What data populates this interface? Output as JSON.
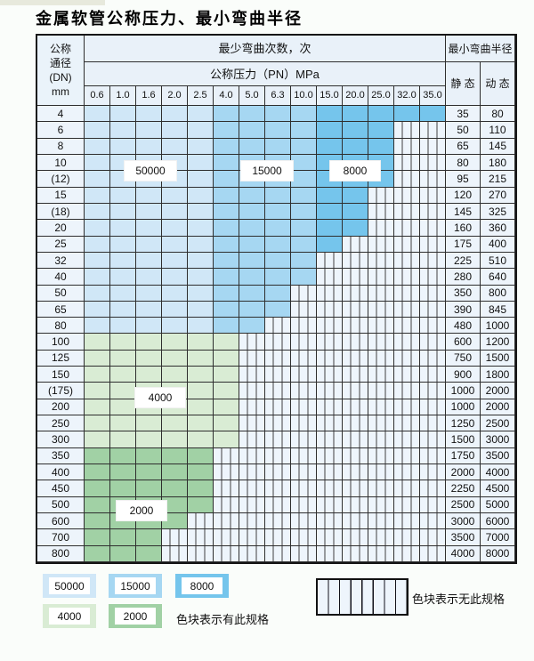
{
  "title": "金属软管公称压力、最小弯曲半径",
  "header": {
    "dn_lines": [
      "公称",
      "通径",
      "(DN)",
      "mm"
    ],
    "cycles_title": "最少弯曲次数，次",
    "radius_title": "最小弯曲半径",
    "pressure_title": "公称压力（PN）MPa",
    "static_label": "静 态",
    "dynamic_label": "动 态"
  },
  "region_labels": {
    "r50000": "50000",
    "r15000": "15000",
    "r8000": "8000",
    "r4000": "4000",
    "r2000": "2000"
  },
  "legend": {
    "items": [
      {
        "label": "50000"
      },
      {
        "label": "15000"
      },
      {
        "label": "8000"
      },
      {
        "label": "4000"
      },
      {
        "label": "2000"
      }
    ],
    "has_spec_text": "色块表示有此规格",
    "no_spec_text": "色块表示无此规格"
  },
  "colors": {
    "blue_50000": "#d0e7f7",
    "blue_15000": "#a6d7f2",
    "blue_8000": "#75c5ec",
    "green_4000": "#d9ecd4",
    "green_2000": "#a1d1a5",
    "no_spec_bg": "#eef5fc",
    "grid_line": "#2e2e2e",
    "label_col_bg": "#edf4fb",
    "header_bg": "#e9f1f9"
  },
  "chart_data": {
    "type": "table",
    "title": "金属软管公称压力、最小弯曲半径",
    "pressure_columns_MPa": [
      "0.6",
      "1.0",
      "1.6",
      "2.0",
      "2.5",
      "4.0",
      "5.0",
      "6.3",
      "10.0",
      "15.0",
      "20.0",
      "25.0",
      "32.0",
      "35.0"
    ],
    "cycle_bands": [
      {
        "cycles": 50000,
        "zone": "blue",
        "pressure_cols": [
          "0.6",
          "1.0",
          "1.6",
          "2.0",
          "2.5"
        ],
        "color": "#d0e7f7"
      },
      {
        "cycles": 15000,
        "zone": "blue",
        "pressure_cols": [
          "4.0",
          "5.0",
          "6.3",
          "10.0"
        ],
        "color": "#a6d7f2"
      },
      {
        "cycles": 8000,
        "zone": "blue",
        "pressure_cols": [
          "15.0",
          "20.0",
          "25.0",
          "32.0",
          "35.0"
        ],
        "color": "#75c5ec"
      },
      {
        "cycles": 4000,
        "zone": "green-4000",
        "rows": "DN 100–300",
        "color": "#d9ecd4"
      },
      {
        "cycles": 2000,
        "zone": "green-2000",
        "rows": "DN 350–800",
        "color": "#a1d1a5"
      }
    ],
    "rows": [
      {
        "dn": "4",
        "zone": "blue",
        "max_pn": "35.0",
        "static": "35",
        "dynamic": "80"
      },
      {
        "dn": "6",
        "zone": "blue",
        "max_pn": "25.0",
        "static": "50",
        "dynamic": "110"
      },
      {
        "dn": "8",
        "zone": "blue",
        "max_pn": "25.0",
        "static": "65",
        "dynamic": "145"
      },
      {
        "dn": "10",
        "zone": "blue",
        "max_pn": "25.0",
        "static": "80",
        "dynamic": "180"
      },
      {
        "dn": "(12)",
        "zone": "blue",
        "max_pn": "25.0",
        "static": "95",
        "dynamic": "215"
      },
      {
        "dn": "15",
        "zone": "blue",
        "max_pn": "20.0",
        "static": "120",
        "dynamic": "270"
      },
      {
        "dn": "(18)",
        "zone": "blue",
        "max_pn": "20.0",
        "static": "145",
        "dynamic": "325"
      },
      {
        "dn": "20",
        "zone": "blue",
        "max_pn": "20.0",
        "static": "160",
        "dynamic": "360"
      },
      {
        "dn": "25",
        "zone": "blue",
        "max_pn": "15.0",
        "static": "175",
        "dynamic": "400"
      },
      {
        "dn": "32",
        "zone": "blue",
        "max_pn": "10.0",
        "static": "225",
        "dynamic": "510"
      },
      {
        "dn": "40",
        "zone": "blue",
        "max_pn": "10.0",
        "static": "280",
        "dynamic": "640"
      },
      {
        "dn": "50",
        "zone": "blue",
        "max_pn": "6.3",
        "static": "350",
        "dynamic": "800"
      },
      {
        "dn": "65",
        "zone": "blue",
        "max_pn": "6.3",
        "static": "390",
        "dynamic": "845"
      },
      {
        "dn": "80",
        "zone": "blue",
        "max_pn": "5.0",
        "static": "480",
        "dynamic": "1000"
      },
      {
        "dn": "100",
        "zone": "green-4000",
        "max_pn": "4.0",
        "static": "600",
        "dynamic": "1200"
      },
      {
        "dn": "125",
        "zone": "green-4000",
        "max_pn": "4.0",
        "static": "750",
        "dynamic": "1500"
      },
      {
        "dn": "150",
        "zone": "green-4000",
        "max_pn": "4.0",
        "static": "900",
        "dynamic": "1800"
      },
      {
        "dn": "(175)",
        "zone": "green-4000",
        "max_pn": "4.0",
        "static": "1000",
        "dynamic": "2000"
      },
      {
        "dn": "200",
        "zone": "green-4000",
        "max_pn": "4.0",
        "static": "1000",
        "dynamic": "2000"
      },
      {
        "dn": "250",
        "zone": "green-4000",
        "max_pn": "4.0",
        "static": "1250",
        "dynamic": "2500"
      },
      {
        "dn": "300",
        "zone": "green-4000",
        "max_pn": "4.0",
        "static": "1500",
        "dynamic": "3000"
      },
      {
        "dn": "350",
        "zone": "green-2000",
        "max_pn": "2.5",
        "static": "1750",
        "dynamic": "3500"
      },
      {
        "dn": "400",
        "zone": "green-2000",
        "max_pn": "2.5",
        "static": "2000",
        "dynamic": "4000"
      },
      {
        "dn": "450",
        "zone": "green-2000",
        "max_pn": "2.5",
        "static": "2250",
        "dynamic": "4500"
      },
      {
        "dn": "500",
        "zone": "green-2000",
        "max_pn": "2.5",
        "static": "2500",
        "dynamic": "5000"
      },
      {
        "dn": "600",
        "zone": "green-2000",
        "max_pn": "2.0",
        "static": "3000",
        "dynamic": "6000"
      },
      {
        "dn": "700",
        "zone": "green-2000",
        "max_pn": "1.6",
        "static": "3500",
        "dynamic": "7000"
      },
      {
        "dn": "800",
        "zone": "green-2000",
        "max_pn": "1.6",
        "static": "4000",
        "dynamic": "8000"
      }
    ]
  }
}
